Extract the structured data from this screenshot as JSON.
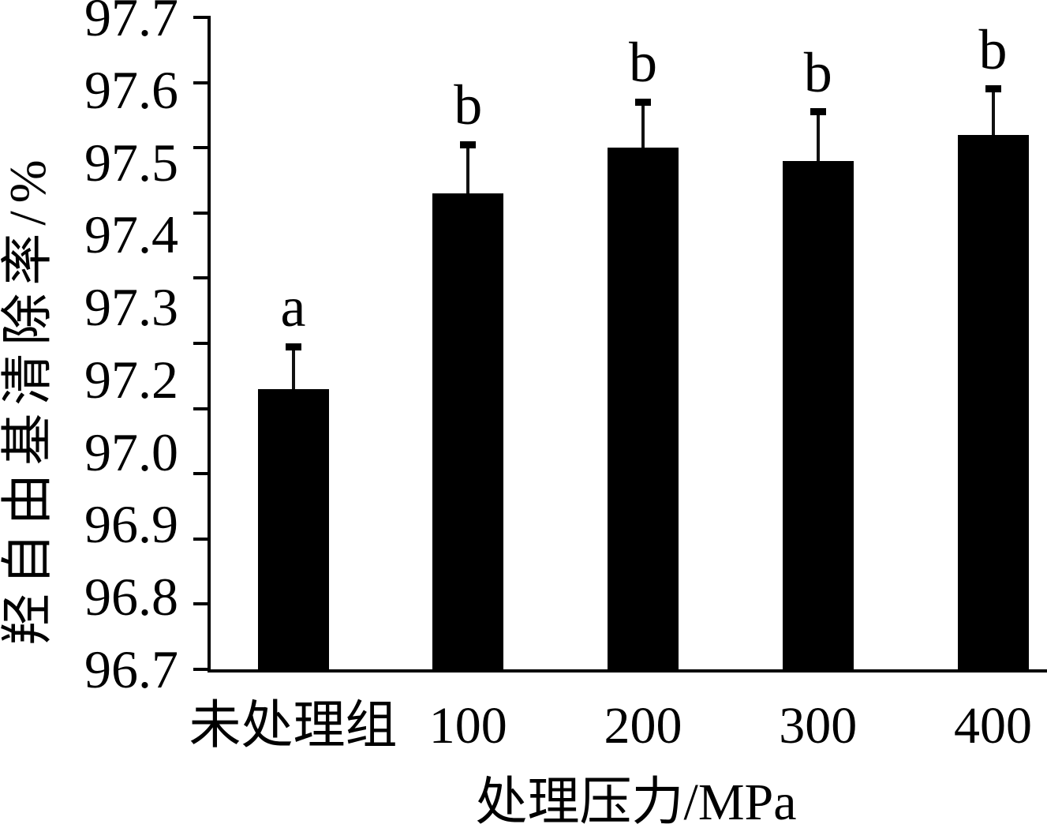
{
  "chart_data": {
    "type": "bar",
    "title": "",
    "xlabel": "处理压力/MPa",
    "ylabel": "羟自由基清除率/%",
    "categories": [
      "未处理组",
      "100",
      "200",
      "300",
      "400"
    ],
    "values": [
      97.13,
      97.43,
      97.5,
      97.48,
      97.52
    ],
    "errors": [
      0.065,
      0.075,
      0.07,
      0.075,
      0.07
    ],
    "sig_letters": [
      "a",
      "b",
      "b",
      "b",
      "b"
    ],
    "ylim": [
      96.7,
      97.7
    ],
    "ytick_step": 0.1,
    "ytick_labels_as_printed": [
      "97.7",
      "97.6",
      "97.5",
      "97.4",
      "97.3",
      "97.2",
      "97.0",
      "96.9",
      "96.8",
      "96.7"
    ],
    "bar_color": "#000000",
    "axis_color": "#000000",
    "background": "#ffffff",
    "grid": false,
    "legend": null
  }
}
